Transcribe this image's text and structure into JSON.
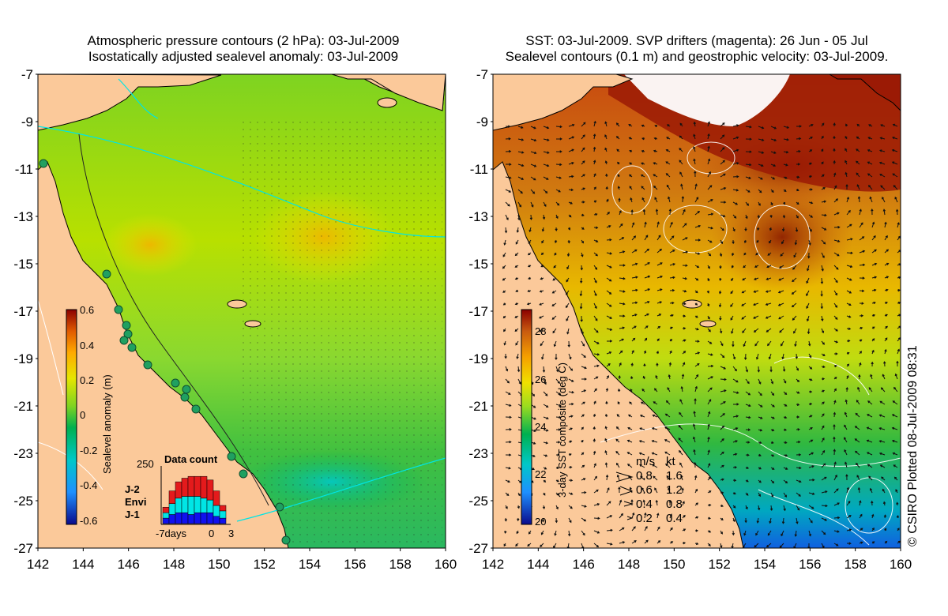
{
  "left_panel": {
    "title_line1": "Atmospheric pressure contours (2 hPa): 03-Jul-2009",
    "title_line2": "Isostatically adjusted sealevel anomaly: 03-Jul-2009",
    "colorbar_label": "Sealevel anomaly (m)",
    "colorbar_ticks": [
      "0.6",
      "0.4",
      "0.2",
      "0",
      "-0.2",
      "-0.4",
      "-0.6"
    ],
    "data_count": {
      "title": "Data count",
      "y_max_label": "250",
      "x_labels": [
        "-7days",
        "0",
        "3"
      ],
      "legend": [
        {
          "label": "J-2",
          "color": "#e41a1c"
        },
        {
          "label": "Envi",
          "color": "#00e5e5"
        },
        {
          "label": "J-1",
          "color": "#1010ee"
        }
      ]
    }
  },
  "right_panel": {
    "title_line1": "SST: 03-Jul-2009. SVP drifters (magenta): 26 Jun - 05 Jul",
    "title_line2": "Sealevel contours (0.1 m) and geostrophic velocity: 03-Jul-2009.",
    "colorbar_label": "3-day SST composite (deg C)",
    "colorbar_ticks": [
      "28",
      "26",
      "24",
      "22",
      "20"
    ],
    "velocity_legend": {
      "header_ms": "m/s",
      "header_kt": "kt",
      "rows": [
        {
          "ms": "0.8",
          "kt": "1.6"
        },
        {
          "ms": "0.6",
          "kt": "1.2"
        },
        {
          "ms": "0.4",
          "kt": "0.8"
        },
        {
          "ms": "0.2",
          "kt": "0.4"
        }
      ]
    }
  },
  "axes": {
    "lat_ticks": [
      "-7",
      "-9",
      "-11",
      "-13",
      "-15",
      "-17",
      "-19",
      "-21",
      "-23",
      "-25",
      "-27"
    ],
    "lon_ticks": [
      "142",
      "144",
      "146",
      "148",
      "150",
      "152",
      "154",
      "156",
      "158",
      "160"
    ]
  },
  "credit": "© CSIRO Plotted 08-Jul-2009 08:31",
  "colors": {
    "land": "#fbc99a",
    "ssl_ramp": [
      "#0a0a8c",
      "#1e90ff",
      "#00c8c8",
      "#00b050",
      "#7ed321",
      "#e6e600",
      "#ffaa00",
      "#e05a00",
      "#8b0000"
    ],
    "sst_ramp": [
      "#0a0a8c",
      "#1e90ff",
      "#00c8c8",
      "#00b050",
      "#9adc20",
      "#f0e000",
      "#f5a000",
      "#c85a10",
      "#8b0000"
    ]
  }
}
